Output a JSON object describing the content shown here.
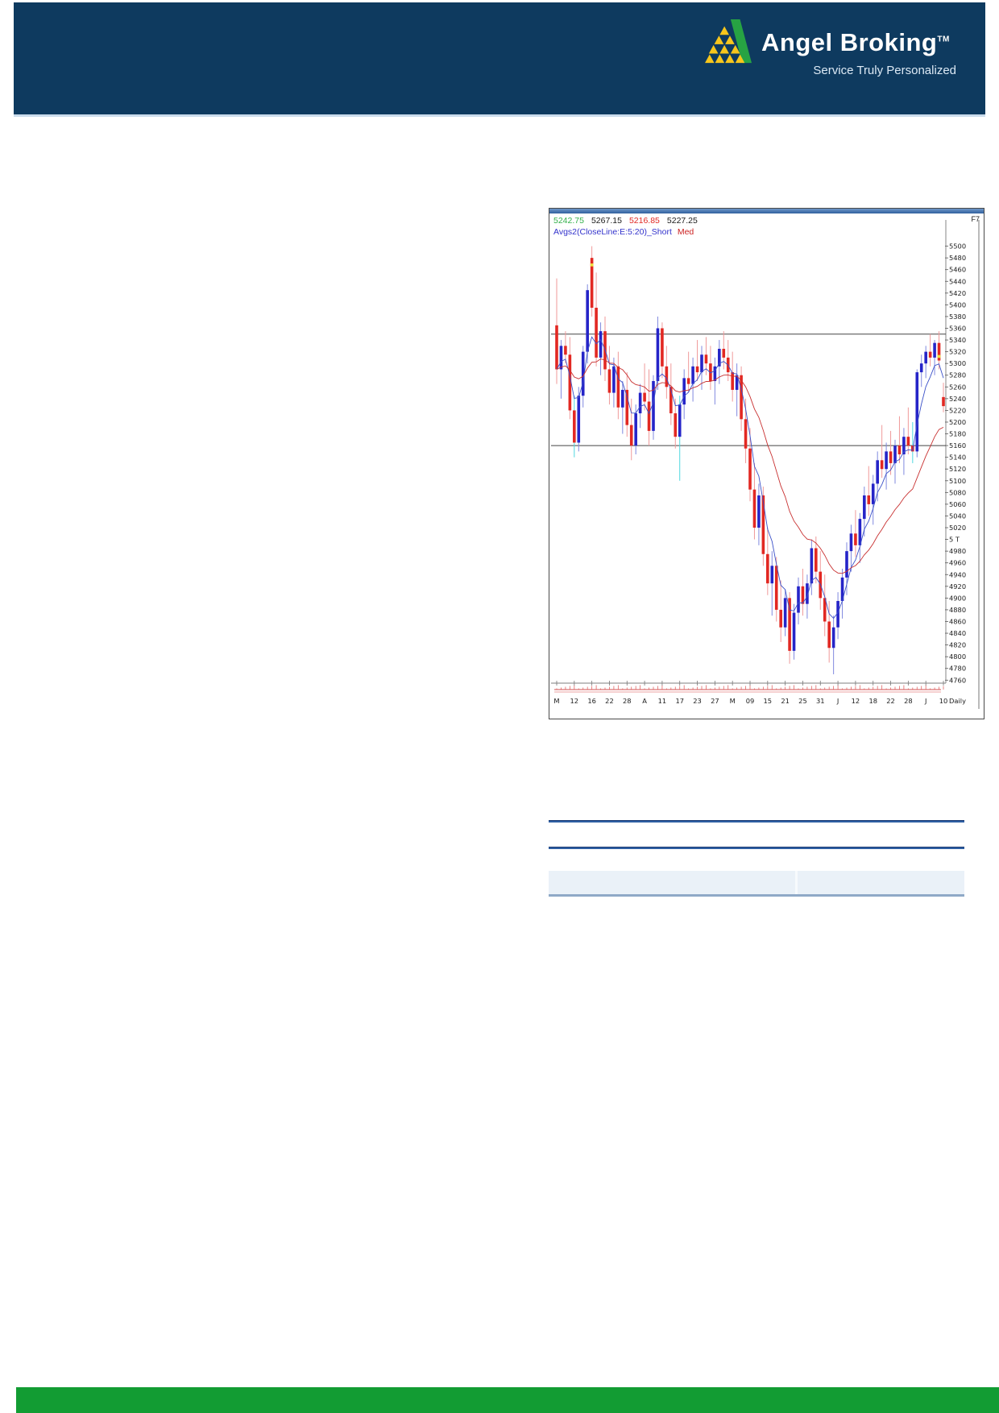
{
  "header": {
    "brand": "Angel Broking",
    "trademark": "TM",
    "tagline": "Service Truly Personalized",
    "bg_color": "#0e3a5f",
    "logo_green": "#27a343",
    "logo_yellow": "#f7c61c"
  },
  "chart": {
    "window_key": "F7",
    "quote": {
      "open": "5242.75",
      "high": "5267.15",
      "low": "5216.85",
      "close": "5227.25"
    },
    "quote_colors": {
      "open": "#33b04a",
      "high": "#1a1a1a",
      "low": "#e22822",
      "close": "#1a1a1a"
    },
    "indicator": {
      "label": "Avgs2(CloseLine:E:5:20)_Short",
      "suffix": "Med"
    },
    "indicator_colors": {
      "label": "#3333cc",
      "suffix": "#cc2222"
    },
    "periodicity": "Daily",
    "colors": {
      "up": "#2524c8",
      "down": "#e22822",
      "wick_up": "#8089df",
      "wick_down": "#f09a9a",
      "ema_short": "#3a50c8",
      "ema_med": "#c83030",
      "level": "#444444",
      "axis": "#999999",
      "text": "#1a1a1a",
      "cyan": "#4fd8e0",
      "yellow": "#ede23e",
      "volume": "#e06868"
    },
    "y_axis": {
      "top": 5500,
      "bottom": 4760,
      "step": 20,
      "special_value": 5000,
      "special_label": "5 T"
    }
  },
  "chart_data": {
    "type": "candlestick",
    "title": "",
    "xlabel": "",
    "ylabel": "",
    "ylim": [
      4748,
      5542
    ],
    "hlines": [
      5350,
      5160
    ],
    "x_tick_labels": [
      "M",
      "12",
      "16",
      "22",
      "28",
      "A",
      "11",
      "17",
      "23",
      "27",
      "M",
      "09",
      "15",
      "21",
      "25",
      "31",
      "J",
      "12",
      "18",
      "22",
      "28",
      "J",
      "10"
    ],
    "tick_every_n_bars": 4,
    "overlays": [
      {
        "name": "Short",
        "type": "ema",
        "period": 5,
        "color": "#3a50c8"
      },
      {
        "name": "Med",
        "type": "ema",
        "period": 20,
        "color": "#c83030"
      }
    ],
    "cyan_bars": [
      4,
      28,
      81
    ],
    "yellow_markers": [
      {
        "bar": 8,
        "price": 5468
      },
      {
        "bar": 87,
        "price": 5312
      }
    ],
    "ohlc": [
      [
        5365,
        5445,
        5265,
        5290
      ],
      [
        5290,
        5340,
        5240,
        5330
      ],
      [
        5330,
        5355,
        5300,
        5315
      ],
      [
        5315,
        5345,
        5205,
        5220
      ],
      [
        5220,
        5245,
        5140,
        5165
      ],
      [
        5165,
        5260,
        5150,
        5245
      ],
      [
        5245,
        5330,
        5225,
        5320
      ],
      [
        5320,
        5435,
        5300,
        5425
      ],
      [
        5480,
        5500,
        5380,
        5395
      ],
      [
        5395,
        5455,
        5295,
        5310
      ],
      [
        5310,
        5370,
        5280,
        5355
      ],
      [
        5355,
        5380,
        5270,
        5290
      ],
      [
        5290,
        5330,
        5230,
        5250
      ],
      [
        5250,
        5310,
        5225,
        5295
      ],
      [
        5295,
        5320,
        5205,
        5225
      ],
      [
        5225,
        5270,
        5180,
        5255
      ],
      [
        5255,
        5285,
        5175,
        5195
      ],
      [
        5195,
        5240,
        5135,
        5160
      ],
      [
        5160,
        5230,
        5145,
        5215
      ],
      [
        5215,
        5265,
        5190,
        5250
      ],
      [
        5250,
        5300,
        5220,
        5235
      ],
      [
        5235,
        5290,
        5160,
        5185
      ],
      [
        5185,
        5280,
        5170,
        5270
      ],
      [
        5270,
        5380,
        5255,
        5360
      ],
      [
        5360,
        5370,
        5275,
        5295
      ],
      [
        5295,
        5330,
        5240,
        5260
      ],
      [
        5260,
        5300,
        5195,
        5215
      ],
      [
        5215,
        5240,
        5155,
        5175
      ],
      [
        5175,
        5245,
        5100,
        5230
      ],
      [
        5230,
        5290,
        5205,
        5275
      ],
      [
        5275,
        5320,
        5250,
        5265
      ],
      [
        5265,
        5310,
        5235,
        5295
      ],
      [
        5295,
        5340,
        5270,
        5285
      ],
      [
        5285,
        5330,
        5255,
        5315
      ],
      [
        5315,
        5345,
        5280,
        5300
      ],
      [
        5300,
        5330,
        5255,
        5270
      ],
      [
        5270,
        5310,
        5230,
        5295
      ],
      [
        5295,
        5340,
        5265,
        5325
      ],
      [
        5325,
        5355,
        5290,
        5310
      ],
      [
        5310,
        5340,
        5270,
        5285
      ],
      [
        5285,
        5320,
        5235,
        5255
      ],
      [
        5255,
        5300,
        5210,
        5280
      ],
      [
        5280,
        5295,
        5185,
        5205
      ],
      [
        5205,
        5240,
        5130,
        5155
      ],
      [
        5155,
        5190,
        5065,
        5085
      ],
      [
        5085,
        5130,
        5000,
        5020
      ],
      [
        5020,
        5095,
        4990,
        5075
      ],
      [
        5075,
        5090,
        4955,
        4975
      ],
      [
        4975,
        5020,
        4905,
        4925
      ],
      [
        4925,
        4980,
        4870,
        4955
      ],
      [
        4955,
        4970,
        4860,
        4880
      ],
      [
        4880,
        4930,
        4825,
        4850
      ],
      [
        4850,
        4915,
        4835,
        4900
      ],
      [
        4900,
        4910,
        4788,
        4810
      ],
      [
        4810,
        4890,
        4795,
        4875
      ],
      [
        4875,
        4935,
        4855,
        4920
      ],
      [
        4920,
        4950,
        4870,
        4890
      ],
      [
        4890,
        4940,
        4865,
        4925
      ],
      [
        4925,
        5000,
        4905,
        4985
      ],
      [
        4985,
        5005,
        4925,
        4945
      ],
      [
        4945,
        4980,
        4880,
        4900
      ],
      [
        4900,
        4940,
        4835,
        4860
      ],
      [
        4860,
        4895,
        4790,
        4815
      ],
      [
        4815,
        4870,
        4770,
        4850
      ],
      [
        4850,
        4910,
        4830,
        4895
      ],
      [
        4895,
        4950,
        4865,
        4935
      ],
      [
        4935,
        4995,
        4905,
        4980
      ],
      [
        4980,
        5025,
        4945,
        5010
      ],
      [
        5010,
        5050,
        4970,
        4990
      ],
      [
        4990,
        5045,
        4960,
        5035
      ],
      [
        5035,
        5090,
        5005,
        5075
      ],
      [
        5075,
        5125,
        5040,
        5060
      ],
      [
        5060,
        5110,
        5025,
        5095
      ],
      [
        5095,
        5150,
        5065,
        5135
      ],
      [
        5135,
        5195,
        5105,
        5120
      ],
      [
        5120,
        5165,
        5085,
        5150
      ],
      [
        5150,
        5185,
        5110,
        5130
      ],
      [
        5130,
        5170,
        5095,
        5160
      ],
      [
        5160,
        5210,
        5130,
        5145
      ],
      [
        5145,
        5190,
        5110,
        5175
      ],
      [
        5175,
        5225,
        5145,
        5160
      ],
      [
        5160,
        5200,
        5130,
        5150
      ],
      [
        5150,
        5290,
        5140,
        5285
      ],
      [
        5285,
        5315,
        5260,
        5300
      ],
      [
        5300,
        5330,
        5275,
        5320
      ],
      [
        5320,
        5350,
        5295,
        5310
      ],
      [
        5310,
        5340,
        5280,
        5335
      ],
      [
        5335,
        5355,
        5290,
        5305
      ],
      [
        5242.75,
        5267.15,
        5216.85,
        5227.25
      ]
    ]
  },
  "footer": {
    "bg_color": "#129c33"
  }
}
